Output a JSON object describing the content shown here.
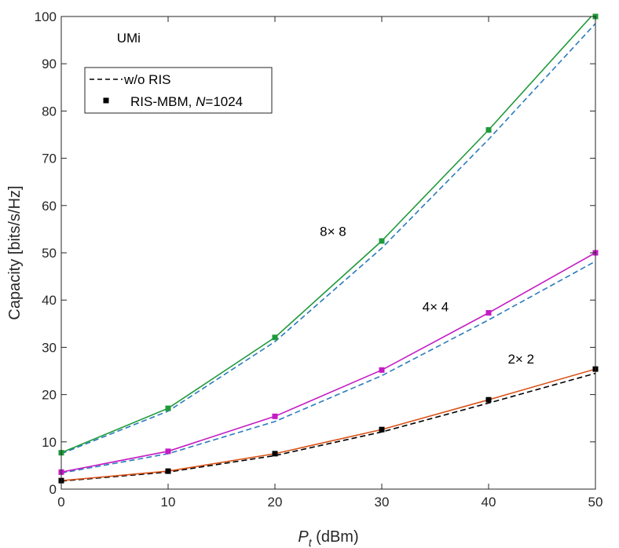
{
  "chart_data": {
    "type": "line",
    "title": "",
    "xlabel_symbol": "P",
    "xlabel_subscript": "t",
    "xlabel_unit": " (dBm)",
    "ylabel": "Capacity [bits/s/Hz]",
    "xlim": [
      0,
      50
    ],
    "ylim": [
      0,
      100
    ],
    "xticks": [
      0,
      10,
      20,
      30,
      40,
      50
    ],
    "yticks": [
      0,
      10,
      20,
      30,
      40,
      50,
      60,
      70,
      80,
      90,
      100
    ],
    "grid": false,
    "x": [
      0,
      10,
      20,
      30,
      40,
      50
    ],
    "series": [
      {
        "name": "8x8 RIS-MBM",
        "group": "8x8",
        "style": "solid",
        "marker": "square",
        "color": "#1f9a3a",
        "values": [
          7.7,
          17.1,
          32.1,
          52.5,
          76.0,
          101.0
        ]
      },
      {
        "name": "8x8 w/o RIS",
        "group": "8x8",
        "style": "dashed",
        "marker": "none",
        "color": "#2b7bbd",
        "values": [
          7.5,
          16.5,
          31.2,
          51.0,
          74.0,
          98.5
        ]
      },
      {
        "name": "4x4 RIS-MBM",
        "group": "4x4",
        "style": "solid",
        "marker": "square",
        "color": "#c41cc4",
        "values": [
          3.6,
          8.0,
          15.4,
          25.2,
          37.3,
          50.0
        ]
      },
      {
        "name": "4x4 w/o RIS",
        "group": "4x4",
        "style": "dashed",
        "marker": "none",
        "color": "#2b7bbd",
        "values": [
          3.4,
          7.5,
          14.3,
          24.0,
          35.8,
          48.2
        ]
      },
      {
        "name": "2x2 RIS-MBM",
        "group": "2x2",
        "style": "solid",
        "marker": "square",
        "color": "#d95319",
        "marker_color": "#000000",
        "values": [
          1.8,
          3.8,
          7.5,
          12.6,
          18.9,
          25.4
        ]
      },
      {
        "name": "2x2 w/o RIS",
        "group": "2x2",
        "style": "dashed",
        "marker": "none",
        "color": "#000000",
        "values": [
          1.7,
          3.6,
          7.1,
          12.1,
          18.2,
          24.5
        ]
      }
    ],
    "annotations": [
      {
        "text": "UMi",
        "x": 5.2,
        "y": 94.5
      },
      {
        "text": "8× 8",
        "x": 24.2,
        "y": 53.6
      },
      {
        "text": "4× 4",
        "x": 33.8,
        "y": 37.6
      },
      {
        "text": "2× 2",
        "x": 41.8,
        "y": 26.6
      }
    ],
    "legend": {
      "position": "top-left",
      "entries": [
        {
          "label": "w/o RIS",
          "style": "dashed",
          "marker": "none",
          "color": "#000000"
        },
        {
          "label_prefix": "RIS-MBM, ",
          "label_italic": "N",
          "label_suffix": "=1024",
          "style": "none",
          "marker": "square",
          "color": "#000000"
        }
      ]
    }
  }
}
